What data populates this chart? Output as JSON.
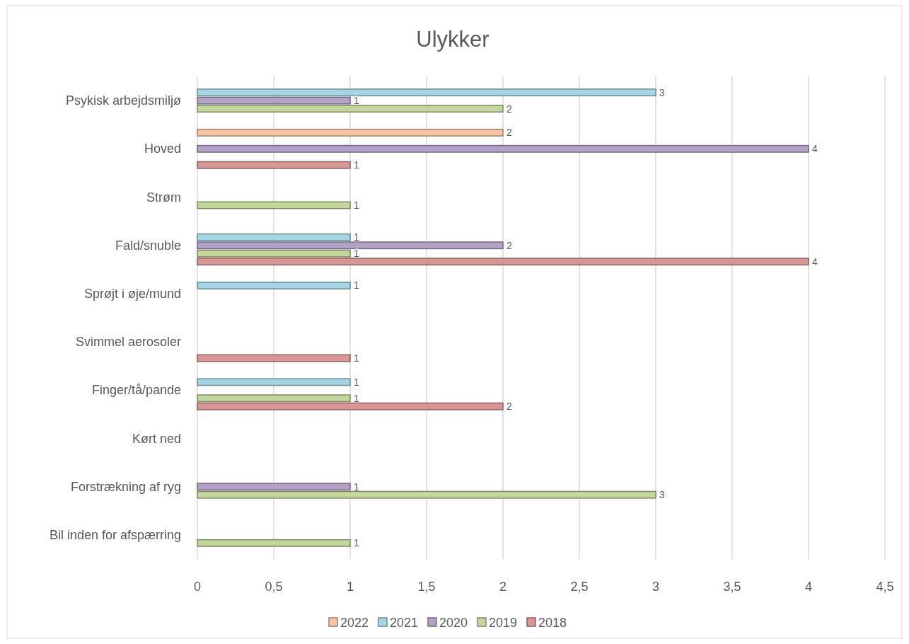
{
  "chart_data": {
    "type": "bar",
    "orientation": "horizontal",
    "title": "Ulykker",
    "categories": [
      "Psykisk arbejdsmiljø",
      "Hoved",
      "Strøm",
      "Fald/snuble",
      "Sprøjt i øje/mund",
      "Svimmel aerosoler",
      "Finger/tå/pande",
      "Kørt ned",
      "Forstrækning af ryg",
      "Bil inden for afspærring"
    ],
    "series": [
      {
        "name": "2022",
        "color": "#f9c4a0",
        "values": [
          null,
          2,
          null,
          null,
          null,
          null,
          null,
          null,
          null,
          null
        ]
      },
      {
        "name": "2021",
        "color": "#a5d5e2",
        "values": [
          3,
          null,
          null,
          1,
          1,
          null,
          1,
          null,
          null,
          null
        ]
      },
      {
        "name": "2020",
        "color": "#b3a2c7",
        "values": [
          1,
          4,
          null,
          2,
          null,
          null,
          null,
          null,
          1,
          null
        ]
      },
      {
        "name": "2019",
        "color": "#c3d69b",
        "values": [
          2,
          null,
          1,
          1,
          null,
          null,
          1,
          null,
          3,
          1
        ]
      },
      {
        "name": "2018",
        "color": "#d99694",
        "values": [
          null,
          1,
          null,
          4,
          null,
          1,
          2,
          null,
          null,
          null
        ]
      }
    ],
    "xlim": [
      0,
      4.5
    ],
    "xticks": [
      0,
      {
        "value": 0.5,
        "label": "0,5"
      },
      1,
      {
        "value": 1.5,
        "label": "1,5"
      },
      2,
      {
        "value": 2.5,
        "label": "2,5"
      },
      3,
      {
        "value": 3.5,
        "label": "3,5"
      },
      4,
      {
        "value": 4.5,
        "label": "4,5"
      }
    ],
    "grid": "x",
    "legend": "bottom",
    "data_labels": true
  }
}
